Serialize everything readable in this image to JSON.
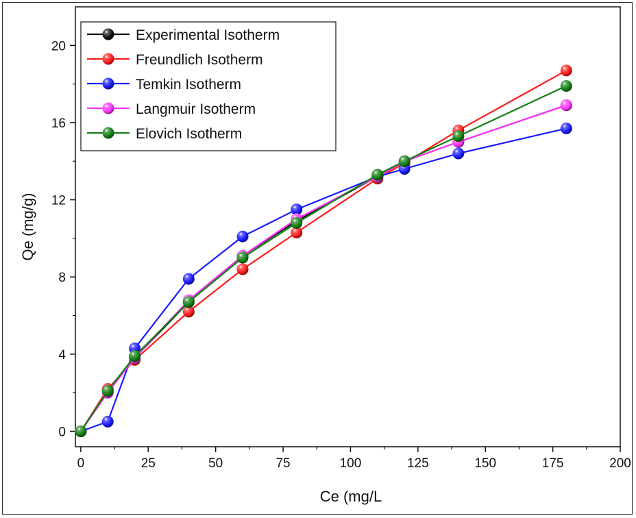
{
  "chart_data": {
    "type": "line",
    "xlabel": "Ce (mg/L",
    "ylabel": "Qe (mg/g)",
    "xlim": [
      -2,
      200
    ],
    "ylim": [
      -0.8,
      22
    ],
    "xticks": [
      "0",
      "25",
      "50",
      "75",
      "100",
      "125",
      "150",
      "175",
      "200"
    ],
    "xtick_values": [
      0,
      25,
      50,
      75,
      100,
      125,
      150,
      175,
      200
    ],
    "yticks": [
      "0",
      "4",
      "8",
      "12",
      "16",
      "20"
    ],
    "ytick_values": [
      0,
      4,
      8,
      12,
      16,
      20
    ],
    "grid": false,
    "legend_position": "top-left",
    "x": [
      0,
      10,
      20,
      40,
      60,
      80,
      110,
      120,
      140,
      180
    ],
    "series": [
      {
        "name": "Experimental Isotherm",
        "color": "#111111",
        "values": [
          0,
          2.1,
          3.8,
          6.7,
          9.1,
          10.9,
          13.2,
          14.0,
          15.0,
          16.9
        ]
      },
      {
        "name": "Freundlich Isotherm",
        "color": "#ff1a1a",
        "values": [
          0,
          2.2,
          3.7,
          6.2,
          8.4,
          10.3,
          13.1,
          13.9,
          15.6,
          18.7
        ]
      },
      {
        "name": "Temkin Isotherm",
        "color": "#1a1aff",
        "values": [
          0,
          0.5,
          4.3,
          7.9,
          10.1,
          11.5,
          13.2,
          13.6,
          14.4,
          15.7
        ]
      },
      {
        "name": "Langmuir Isotherm",
        "color": "#ff33ff",
        "values": [
          0,
          2.0,
          3.8,
          6.8,
          9.1,
          11.0,
          13.2,
          14.0,
          15.0,
          16.9
        ]
      },
      {
        "name": "Elovich Isotherm",
        "color": "#128012",
        "values": [
          0,
          2.1,
          3.9,
          6.7,
          9.0,
          10.8,
          13.3,
          14.0,
          15.3,
          17.9
        ]
      }
    ]
  }
}
